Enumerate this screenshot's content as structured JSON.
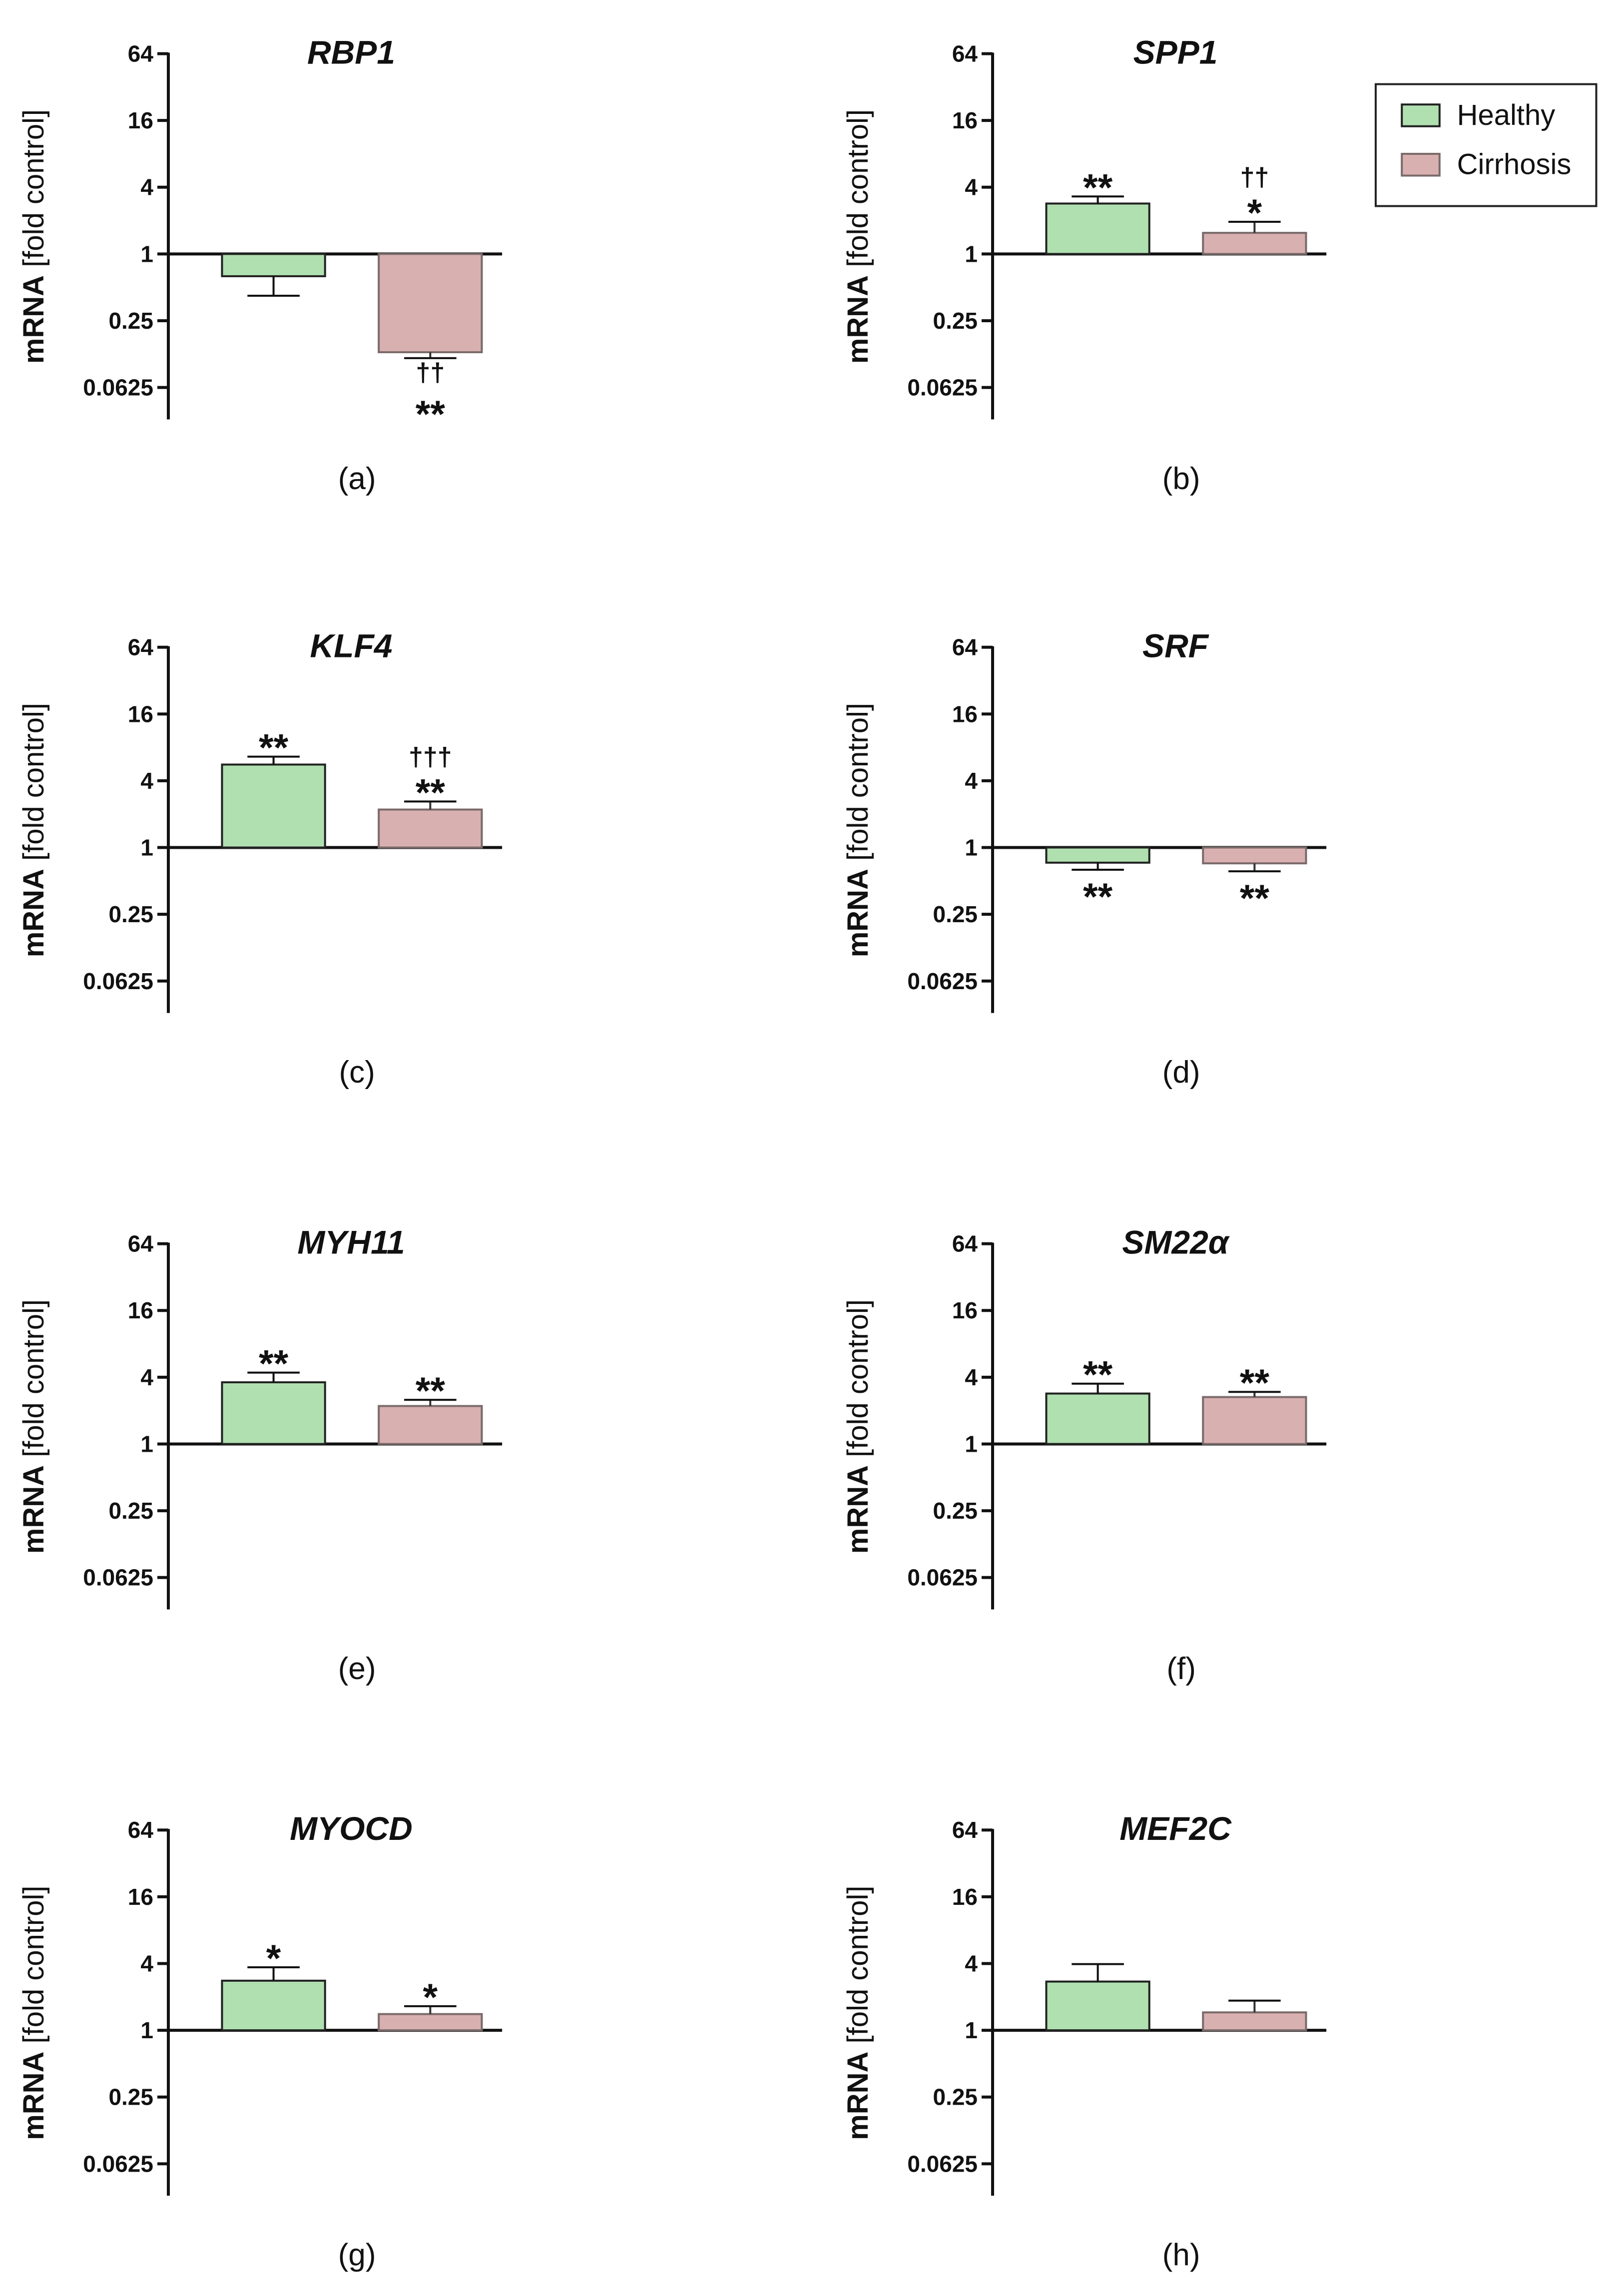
{
  "figure": {
    "legend": {
      "entries": [
        {
          "label": "Healthy",
          "color": "#b0e0b0",
          "stroke": "#222222"
        },
        {
          "label": "Cirrhosis",
          "color": "#d9b0b0",
          "stroke": "#7a6a6a"
        }
      ]
    }
  },
  "chart_data": [
    {
      "type": "bar",
      "panel": "(a)",
      "title": "RBP1",
      "ylabel": "mRNA [fold control]",
      "ylabel_bold": "mRNA",
      "ylabel_rest": " [fold control]",
      "yscale": "log2",
      "ylim": [
        0.03125,
        64
      ],
      "yticks": [
        "64",
        "16",
        "4",
        "1",
        "0.25",
        "0.0625"
      ],
      "categories": [
        "Healthy",
        "Cirrhosis"
      ],
      "series": [
        {
          "name": "Healthy",
          "value": 0.63,
          "error": 0.42,
          "annotation_lines": []
        },
        {
          "name": "Cirrhosis",
          "value": 0.13,
          "error": 0.115,
          "annotation_lines": [
            "††",
            "**"
          ]
        }
      ]
    },
    {
      "type": "bar",
      "panel": "(b)",
      "title": "SPP1",
      "ylabel": "mRNA [fold control]",
      "ylabel_bold": "mRNA",
      "ylabel_rest": " [fold control]",
      "yscale": "log2",
      "ylim": [
        0.03125,
        64
      ],
      "yticks": [
        "64",
        "16",
        "4",
        "1",
        "0.25",
        "0.0625"
      ],
      "categories": [
        "Healthy",
        "Cirrhosis"
      ],
      "series": [
        {
          "name": "Healthy",
          "value": 2.85,
          "error": 3.3,
          "annotation_lines": [
            "**"
          ]
        },
        {
          "name": "Cirrhosis",
          "value": 1.55,
          "error": 1.95,
          "annotation_lines": [
            "††",
            "*"
          ]
        }
      ]
    },
    {
      "type": "bar",
      "panel": "(c)",
      "title": "KLF4",
      "ylabel": "mRNA [fold control]",
      "ylabel_bold": "mRNA",
      "ylabel_rest": " [fold control]",
      "yscale": "log2",
      "ylim": [
        0.03125,
        64
      ],
      "yticks": [
        "64",
        "16",
        "4",
        "1",
        "0.25",
        "0.0625"
      ],
      "categories": [
        "Healthy",
        "Cirrhosis"
      ],
      "series": [
        {
          "name": "Healthy",
          "value": 5.6,
          "error": 6.6,
          "annotation_lines": [
            "**"
          ]
        },
        {
          "name": "Cirrhosis",
          "value": 2.2,
          "error": 2.6,
          "annotation_lines": [
            "†††",
            "**"
          ]
        }
      ]
    },
    {
      "type": "bar",
      "panel": "(d)",
      "title": "SRF",
      "ylabel": "mRNA [fold control]",
      "ylabel_bold": "mRNA",
      "ylabel_rest": " [fold control]",
      "yscale": "log2",
      "ylim": [
        0.03125,
        64
      ],
      "yticks": [
        "64",
        "16",
        "4",
        "1",
        "0.25",
        "0.0625"
      ],
      "categories": [
        "Healthy",
        "Cirrhosis"
      ],
      "series": [
        {
          "name": "Healthy",
          "value": 0.73,
          "error": 0.63,
          "annotation_lines": [
            "**"
          ]
        },
        {
          "name": "Cirrhosis",
          "value": 0.72,
          "error": 0.61,
          "annotation_lines": [
            "**"
          ]
        }
      ]
    },
    {
      "type": "bar",
      "panel": "(e)",
      "title": "MYH11",
      "ylabel": "mRNA [fold control]",
      "ylabel_bold": "mRNA",
      "ylabel_rest": " [fold control]",
      "yscale": "log2",
      "ylim": [
        0.03125,
        64
      ],
      "yticks": [
        "64",
        "16",
        "4",
        "1",
        "0.25",
        "0.0625"
      ],
      "categories": [
        "Healthy",
        "Cirrhosis"
      ],
      "series": [
        {
          "name": "Healthy",
          "value": 3.6,
          "error": 4.4,
          "annotation_lines": [
            "**"
          ]
        },
        {
          "name": "Cirrhosis",
          "value": 2.2,
          "error": 2.5,
          "annotation_lines": [
            "**"
          ]
        }
      ]
    },
    {
      "type": "bar",
      "panel": "(f)",
      "title": "SM22α",
      "ylabel": "mRNA [fold control]",
      "ylabel_bold": "mRNA",
      "ylabel_rest": " [fold control]",
      "yscale": "log2",
      "ylim": [
        0.03125,
        64
      ],
      "yticks": [
        "64",
        "16",
        "4",
        "1",
        "0.25",
        "0.0625"
      ],
      "categories": [
        "Healthy",
        "Cirrhosis"
      ],
      "series": [
        {
          "name": "Healthy",
          "value": 2.85,
          "error": 3.5,
          "annotation_lines": [
            "**"
          ]
        },
        {
          "name": "Cirrhosis",
          "value": 2.65,
          "error": 2.95,
          "annotation_lines": [
            "**"
          ]
        }
      ]
    },
    {
      "type": "bar",
      "panel": "(g)",
      "title": "MYOCD",
      "ylabel": "mRNA [fold control]",
      "ylabel_bold": "mRNA",
      "ylabel_rest": " [fold control]",
      "yscale": "log2",
      "ylim": [
        0.03125,
        64
      ],
      "yticks": [
        "64",
        "16",
        "4",
        "1",
        "0.25",
        "0.0625"
      ],
      "categories": [
        "Healthy",
        "Cirrhosis"
      ],
      "series": [
        {
          "name": "Healthy",
          "value": 2.8,
          "error": 3.7,
          "annotation_lines": [
            "*"
          ]
        },
        {
          "name": "Cirrhosis",
          "value": 1.4,
          "error": 1.65,
          "annotation_lines": [
            "*"
          ]
        }
      ]
    },
    {
      "type": "bar",
      "panel": "(h)",
      "title": "MEF2C",
      "ylabel": "mRNA [fold control]",
      "ylabel_bold": "mRNA",
      "ylabel_rest": " [fold control]",
      "yscale": "log2",
      "ylim": [
        0.03125,
        64
      ],
      "yticks": [
        "64",
        "16",
        "4",
        "1",
        "0.25",
        "0.0625"
      ],
      "categories": [
        "Healthy",
        "Cirrhosis"
      ],
      "series": [
        {
          "name": "Healthy",
          "value": 2.75,
          "error": 3.95,
          "annotation_lines": []
        },
        {
          "name": "Cirrhosis",
          "value": 1.45,
          "error": 1.85,
          "annotation_lines": []
        }
      ]
    }
  ]
}
